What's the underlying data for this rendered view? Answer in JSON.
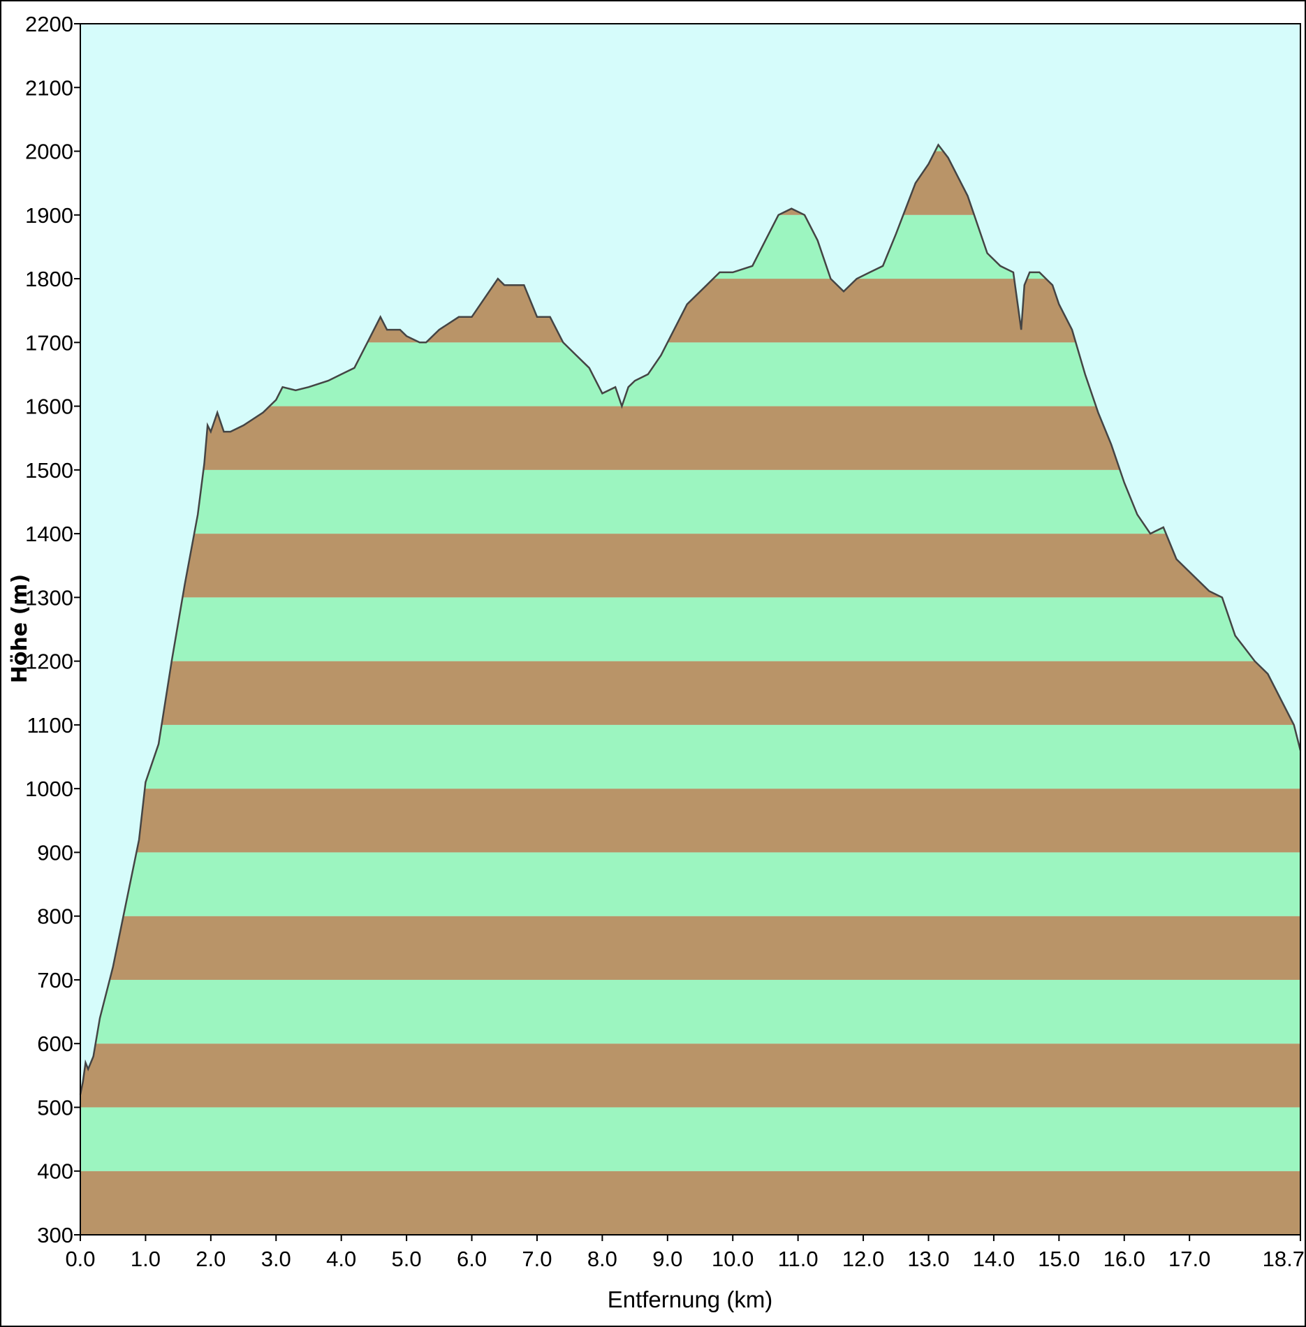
{
  "chart_data": {
    "type": "area",
    "title": "",
    "xlabel": "Entfernung   (km)",
    "ylabel": "Höhe  (m)",
    "xlim": [
      0,
      18.7
    ],
    "ylim": [
      300,
      2200
    ],
    "x_ticks": [
      "0.0",
      "1.0",
      "2.0",
      "3.0",
      "4.0",
      "5.0",
      "6.0",
      "7.0",
      "8.0",
      "9.0",
      "10.0",
      "11.0",
      "12.0",
      "13.0",
      "14.0",
      "15.0",
      "16.0",
      "17.0",
      "18.7"
    ],
    "x_tick_values": [
      0,
      1,
      2,
      3,
      4,
      5,
      6,
      7,
      8,
      9,
      10,
      11,
      12,
      13,
      14,
      15,
      16,
      17,
      18.7
    ],
    "y_ticks": [
      "300",
      "400",
      "500",
      "600",
      "700",
      "800",
      "900",
      "1000",
      "1100",
      "1200",
      "1300",
      "1400",
      "1500",
      "1600",
      "1700",
      "1800",
      "1900",
      "2000",
      "2100",
      "2200"
    ],
    "y_tick_values": [
      300,
      400,
      500,
      600,
      700,
      800,
      900,
      1000,
      1100,
      1200,
      1300,
      1400,
      1500,
      1600,
      1700,
      1800,
      1900,
      2000,
      2100,
      2200
    ],
    "band_step": 100,
    "grid": false,
    "colors": {
      "sky": "#d6fcfb",
      "band_brown": "#b99468",
      "band_green": "#9cf5c0",
      "profile_line": "#444444",
      "frame": "#000000"
    },
    "series": [
      {
        "x": [
          0.0,
          0.04,
          0.08,
          0.12,
          0.2,
          0.3,
          0.5,
          0.7,
          0.9,
          1.0,
          1.2,
          1.4,
          1.6,
          1.8,
          1.9,
          1.95,
          2.0,
          2.1,
          2.2,
          2.3,
          2.5,
          2.8,
          3.0,
          3.1,
          3.3,
          3.5,
          3.8,
          4.0,
          4.2,
          4.4,
          4.6,
          4.7,
          4.9,
          5.0,
          5.2,
          5.3,
          5.5,
          5.8,
          6.0,
          6.2,
          6.4,
          6.5,
          6.7,
          6.8,
          7.0,
          7.2,
          7.4,
          7.6,
          7.8,
          8.0,
          8.2,
          8.3,
          8.4,
          8.5,
          8.7,
          8.9,
          9.0,
          9.3,
          9.6,
          9.8,
          10.0,
          10.3,
          10.5,
          10.7,
          10.9,
          11.1,
          11.3,
          11.5,
          11.7,
          11.9,
          12.1,
          12.3,
          12.5,
          12.8,
          13.0,
          13.15,
          13.3,
          13.6,
          13.9,
          14.1,
          14.3,
          14.42,
          14.47,
          14.55,
          14.7,
          14.8,
          14.9,
          15.0,
          15.2,
          15.4,
          15.6,
          15.8,
          16.0,
          16.2,
          16.4,
          16.6,
          16.8,
          17.0,
          17.3,
          17.5,
          17.7,
          18.0,
          18.2,
          18.5,
          18.6,
          18.7
        ],
        "y": [
          520,
          540,
          570,
          560,
          580,
          640,
          720,
          820,
          920,
          1010,
          1070,
          1200,
          1320,
          1430,
          1510,
          1570,
          1560,
          1590,
          1560,
          1560,
          1570,
          1590,
          1610,
          1630,
          1625,
          1630,
          1640,
          1650,
          1660,
          1700,
          1740,
          1720,
          1720,
          1710,
          1700,
          1700,
          1720,
          1740,
          1740,
          1770,
          1800,
          1790,
          1790,
          1790,
          1740,
          1740,
          1700,
          1680,
          1660,
          1620,
          1630,
          1600,
          1630,
          1640,
          1650,
          1680,
          1700,
          1760,
          1790,
          1810,
          1810,
          1820,
          1860,
          1900,
          1910,
          1900,
          1860,
          1800,
          1780,
          1800,
          1810,
          1820,
          1870,
          1950,
          1980,
          2010,
          1990,
          1930,
          1840,
          1820,
          1810,
          1720,
          1790,
          1810,
          1810,
          1800,
          1790,
          1760,
          1720,
          1650,
          1590,
          1540,
          1480,
          1430,
          1400,
          1410,
          1360,
          1340,
          1310,
          1300,
          1240,
          1200,
          1180,
          1120,
          1100,
          1060
        ]
      }
    ]
  }
}
